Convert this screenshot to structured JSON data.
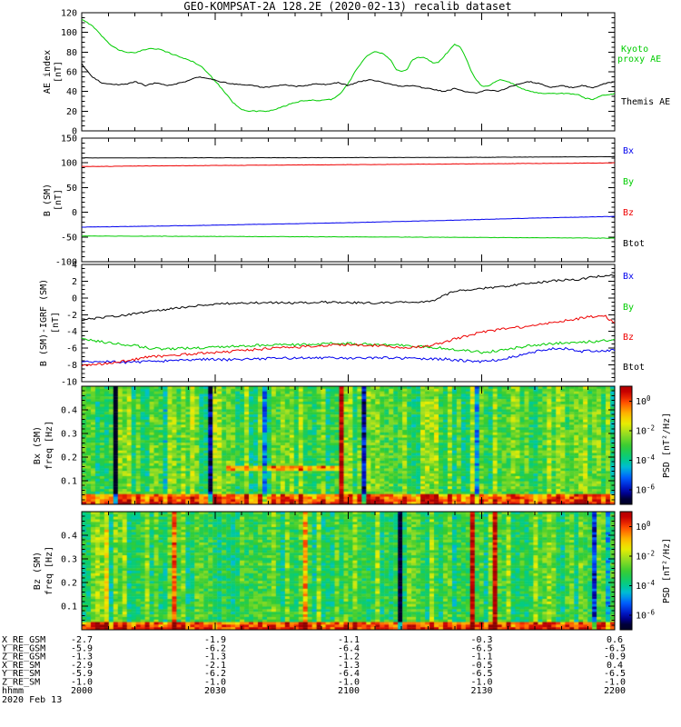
{
  "title": "GEO-KOMPSAT-2A 128.2E (2020-02-13) recalib dataset",
  "hhmm_label": "hhmm",
  "date_label": "2020 Feb 13",
  "time_ticks": [
    "2000",
    "2030",
    "2100",
    "2130",
    "2200"
  ],
  "colors": {
    "foreground": "#000000",
    "background": "#ffffff",
    "green": "#00cc00",
    "blue": "#0000ee",
    "red": "#ee0000",
    "black": "#000000"
  },
  "panel1": {
    "ylabel_line1": "AE index",
    "ylabel_line2": "[nT]",
    "yticks": [
      "120",
      "100",
      "80",
      "60",
      "40",
      "20",
      "0"
    ],
    "legend_kyoto_line1": "Kyoto",
    "legend_kyoto_line2": "proxy AE",
    "legend_kyoto_color": "#00cc00",
    "legend_themis": "Themis AE",
    "legend_themis_color": "#000000"
  },
  "panel2": {
    "ylabel_line1": "B (SM)",
    "ylabel_line2": "[nT]",
    "yticks": [
      "150",
      "100",
      "50",
      "0",
      "-50",
      "-100"
    ]
  },
  "panel3": {
    "ylabel_line1": "B (SM)-IGRF (SM)",
    "ylabel_line2": "[nT]",
    "yticks": [
      "4",
      "2",
      "0",
      "-2",
      "-4",
      "-6",
      "-8",
      "-10"
    ]
  },
  "panel4": {
    "ylabel_line1": "Bx (SM)",
    "ylabel_line2": "freq [Hz]",
    "yticks": [
      "0.4",
      "0.3",
      "0.2",
      "0.1"
    ],
    "colorbar_label": "PSD [nT²/Hz]",
    "colorbar_ticks": [
      "10^0",
      "10^-2",
      "10^-4",
      "10^-6"
    ]
  },
  "panel5": {
    "ylabel_line1": "Bz (SM)",
    "ylabel_line2": "freq [Hz]",
    "yticks": [
      "0.4",
      "0.3",
      "0.2",
      "0.1"
    ],
    "colorbar_label": "PSD [nT²/Hz]",
    "colorbar_ticks": [
      "10^0",
      "10^-2",
      "10^-4",
      "10^-6"
    ]
  },
  "b_legend": [
    {
      "label": "Bx",
      "color": "#0000ee"
    },
    {
      "label": "By",
      "color": "#00cc00"
    },
    {
      "label": "Bz",
      "color": "#ee0000"
    },
    {
      "label": "Btot",
      "color": "#000000"
    }
  ],
  "ephemeris": [
    {
      "label": "X_RE_GSM",
      "values": [
        "-2.7",
        "-1.9",
        "-1.1",
        "-0.3",
        "0.6"
      ]
    },
    {
      "label": "Y_RE_GSM",
      "values": [
        "-5.9",
        "-6.2",
        "-6.4",
        "-6.5",
        "-6.5"
      ]
    },
    {
      "label": "Z_RE_GSM",
      "values": [
        "-1.3",
        "-1.3",
        "-1.2",
        "-1.1",
        "-0.9"
      ]
    },
    {
      "label": "X_RE_SM",
      "values": [
        "-2.9",
        "-2.1",
        "-1.3",
        "-0.5",
        "0.4"
      ]
    },
    {
      "label": "Y_RE_SM",
      "values": [
        "-5.9",
        "-6.2",
        "-6.4",
        "-6.5",
        "-6.5"
      ]
    },
    {
      "label": "Z_RE_SM",
      "values": [
        "-1.0",
        "-1.0",
        "-1.0",
        "-1.0",
        "-1.0"
      ]
    }
  ],
  "chart_data": [
    {
      "type": "line",
      "title": "AE index",
      "ylabel": "AE index [nT]",
      "ylim": [
        0,
        120
      ],
      "x_axis_labels": [
        "2000",
        "2030",
        "2100",
        "2130",
        "2200"
      ],
      "series": [
        {
          "name": "Kyoto proxy AE",
          "color": "#00cc00",
          "noise": 0.5,
          "x": [
            0,
            0.02,
            0.04,
            0.055,
            0.07,
            0.085,
            0.1,
            0.115,
            0.13,
            0.145,
            0.16,
            0.175,
            0.19,
            0.21,
            0.225,
            0.24,
            0.255,
            0.27,
            0.285,
            0.3,
            0.315,
            0.33,
            0.35,
            0.365,
            0.38,
            0.395,
            0.41,
            0.43,
            0.45,
            0.47,
            0.485,
            0.5,
            0.515,
            0.53,
            0.54,
            0.55,
            0.565,
            0.58,
            0.59,
            0.6,
            0.61,
            0.62,
            0.63,
            0.645,
            0.66,
            0.67,
            0.68,
            0.69,
            0.7,
            0.71,
            0.72,
            0.73,
            0.74,
            0.75,
            0.76,
            0.77,
            0.785,
            0.8,
            0.815,
            0.83,
            0.85,
            0.87,
            0.89,
            0.91,
            0.93,
            0.945,
            0.96,
            0.975,
            0.99,
            1
          ],
          "values": [
            113,
            107,
            95,
            87,
            82,
            80,
            79,
            82,
            84,
            83,
            80,
            77,
            74,
            70,
            65,
            57,
            48,
            38,
            28,
            22,
            20,
            20,
            20,
            22,
            25,
            28,
            30,
            31,
            31,
            32,
            38,
            48,
            62,
            73,
            78,
            80,
            79,
            72,
            62,
            60,
            62,
            72,
            75,
            74,
            69,
            70,
            76,
            82,
            88,
            85,
            75,
            62,
            52,
            46,
            45,
            48,
            52,
            50,
            46,
            42,
            39,
            38,
            38,
            38,
            37,
            33,
            32,
            36,
            37,
            38
          ]
        },
        {
          "name": "Themis AE",
          "color": "#000000",
          "noise": 0.5,
          "x": [
            0,
            0.02,
            0.04,
            0.06,
            0.08,
            0.1,
            0.12,
            0.14,
            0.16,
            0.18,
            0.2,
            0.22,
            0.24,
            0.26,
            0.28,
            0.3,
            0.32,
            0.34,
            0.36,
            0.38,
            0.4,
            0.42,
            0.44,
            0.46,
            0.48,
            0.5,
            0.52,
            0.54,
            0.56,
            0.58,
            0.6,
            0.62,
            0.64,
            0.66,
            0.68,
            0.7,
            0.72,
            0.74,
            0.76,
            0.78,
            0.8,
            0.82,
            0.84,
            0.86,
            0.88,
            0.9,
            0.92,
            0.94,
            0.96,
            0.98,
            1
          ],
          "values": [
            68,
            55,
            48,
            47,
            47,
            50,
            46,
            49,
            46,
            48,
            51,
            55,
            53,
            50,
            48,
            47,
            46,
            44,
            45,
            47,
            45,
            46,
            48,
            47,
            49,
            46,
            50,
            52,
            50,
            47,
            45,
            46,
            44,
            42,
            40,
            43,
            40,
            38,
            42,
            40,
            44,
            48,
            50,
            48,
            44,
            46,
            44,
            46,
            44,
            48,
            50
          ]
        }
      ]
    },
    {
      "type": "line",
      "title": "B (SM)",
      "ylabel": "B (SM) [nT]",
      "ylim": [
        -100,
        150
      ],
      "x_axis_labels": [
        "2000",
        "2030",
        "2100",
        "2130",
        "2200"
      ],
      "series": [
        {
          "name": "Bx",
          "color": "#0000ee",
          "noise": 0.3,
          "x": [
            0,
            0.1,
            0.2,
            0.3,
            0.4,
            0.5,
            0.6,
            0.7,
            0.8,
            0.9,
            1
          ],
          "values": [
            -30,
            -28.5,
            -27,
            -25,
            -23,
            -21,
            -18.5,
            -16,
            -13,
            -10.5,
            -8.5
          ]
        },
        {
          "name": "By",
          "color": "#00cc00",
          "noise": 0.35,
          "x": [
            0,
            0.1,
            0.2,
            0.3,
            0.4,
            0.5,
            0.6,
            0.7,
            0.8,
            0.9,
            1
          ],
          "values": [
            -48,
            -48.3,
            -48.7,
            -49,
            -49.4,
            -49.8,
            -50.2,
            -50.7,
            -51.2,
            -51.8,
            -52.4
          ]
        },
        {
          "name": "Bz",
          "color": "#ee0000",
          "noise": 0.35,
          "x": [
            0,
            0.1,
            0.2,
            0.3,
            0.4,
            0.5,
            0.6,
            0.7,
            0.8,
            0.9,
            1
          ],
          "values": [
            92.5,
            93.5,
            94.3,
            95,
            95.7,
            96.3,
            97,
            97.7,
            98.4,
            99.2,
            100
          ]
        },
        {
          "name": "Btot",
          "color": "#000000",
          "noise": 0.25,
          "x": [
            0,
            0.1,
            0.2,
            0.3,
            0.4,
            0.5,
            0.6,
            0.7,
            0.8,
            0.9,
            1
          ],
          "values": [
            110,
            110,
            110.2,
            110.3,
            110.4,
            110.6,
            110.8,
            111,
            111.4,
            112,
            112.5
          ]
        }
      ]
    },
    {
      "type": "line",
      "title": "B (SM)-IGRF (SM)",
      "ylabel": "B (SM)-IGRF (SM) [nT]",
      "ylim": [
        -10,
        4
      ],
      "x_axis_labels": [
        "2000",
        "2030",
        "2100",
        "2130",
        "2200"
      ],
      "series": [
        {
          "name": "Bx",
          "color": "#0000ee",
          "noise": 0.15,
          "x": [
            0,
            0.04,
            0.08,
            0.12,
            0.16,
            0.2,
            0.24,
            0.28,
            0.32,
            0.36,
            0.4,
            0.44,
            0.48,
            0.52,
            0.56,
            0.6,
            0.64,
            0.68,
            0.72,
            0.75,
            0.78,
            0.81,
            0.84,
            0.86,
            0.88,
            0.9,
            0.92,
            0.94,
            0.96,
            0.98,
            1
          ],
          "values": [
            -7.7,
            -7.6,
            -7.7,
            -7.6,
            -7.5,
            -7.4,
            -7.3,
            -7.4,
            -7.3,
            -7.2,
            -7.2,
            -7.1,
            -7.2,
            -7.2,
            -7.1,
            -7.2,
            -7.3,
            -7.3,
            -7.5,
            -7.6,
            -7.4,
            -7.0,
            -6.6,
            -6.3,
            -6.1,
            -6.0,
            -6.2,
            -6.4,
            -6.3,
            -6.4,
            -6.2
          ]
        },
        {
          "name": "By",
          "color": "#00cc00",
          "noise": 0.15,
          "x": [
            0,
            0.03,
            0.06,
            0.1,
            0.13,
            0.16,
            0.2,
            0.24,
            0.28,
            0.32,
            0.36,
            0.4,
            0.44,
            0.48,
            0.52,
            0.56,
            0.6,
            0.64,
            0.68,
            0.72,
            0.75,
            0.78,
            0.81,
            0.84,
            0.87,
            0.9,
            0.93,
            0.96,
            1
          ],
          "values": [
            -4.8,
            -5.2,
            -5.4,
            -5.7,
            -6.0,
            -6.1,
            -6.0,
            -5.9,
            -5.8,
            -5.7,
            -5.6,
            -5.6,
            -5.5,
            -5.4,
            -5.5,
            -5.6,
            -5.7,
            -5.8,
            -6.0,
            -6.3,
            -6.5,
            -6.3,
            -6.0,
            -5.7,
            -5.5,
            -5.4,
            -5.3,
            -5.2,
            -5.0
          ]
        },
        {
          "name": "Bz",
          "color": "#ee0000",
          "noise": 0.15,
          "x": [
            0,
            0.04,
            0.08,
            0.12,
            0.16,
            0.2,
            0.24,
            0.28,
            0.32,
            0.36,
            0.4,
            0.44,
            0.48,
            0.52,
            0.56,
            0.6,
            0.64,
            0.66,
            0.68,
            0.7,
            0.73,
            0.76,
            0.79,
            0.82,
            0.85,
            0.88,
            0.91,
            0.94,
            0.96,
            0.98,
            1
          ],
          "values": [
            -8.05,
            -7.9,
            -7.55,
            -7.1,
            -6.9,
            -6.7,
            -6.55,
            -6.4,
            -6.2,
            -6.0,
            -5.9,
            -5.7,
            -5.6,
            -5.6,
            -5.7,
            -5.9,
            -5.8,
            -5.6,
            -5.3,
            -4.9,
            -4.4,
            -4.0,
            -3.7,
            -3.5,
            -3.3,
            -3.0,
            -2.7,
            -2.4,
            -2.2,
            -2.1,
            -3.0
          ]
        },
        {
          "name": "Btot",
          "color": "#000000",
          "noise": 0.12,
          "x": [
            0,
            0.03,
            0.06,
            0.1,
            0.14,
            0.18,
            0.22,
            0.26,
            0.3,
            0.35,
            0.4,
            0.45,
            0.5,
            0.55,
            0.6,
            0.63,
            0.66,
            0.68,
            0.7,
            0.73,
            0.76,
            0.79,
            0.82,
            0.85,
            0.88,
            0.91,
            0.93,
            0.95,
            0.97,
            1
          ],
          "values": [
            -2.6,
            -2.4,
            -2.2,
            -1.9,
            -1.5,
            -1.2,
            -0.9,
            -0.7,
            -0.6,
            -0.55,
            -0.6,
            -0.5,
            -0.55,
            -0.6,
            -0.5,
            -0.6,
            -0.3,
            0.3,
            0.8,
            1.0,
            1.2,
            1.3,
            1.6,
            1.8,
            2.0,
            2.2,
            2.1,
            2.4,
            2.6,
            2.7
          ]
        }
      ]
    },
    {
      "type": "heatmap",
      "title": "Bx (SM) spectrogram",
      "ylabel": "Bx (SM) freq [Hz]",
      "ylim": [
        0,
        0.5
      ],
      "x_axis_labels": [
        "2000",
        "2030",
        "2100",
        "2130",
        "2200"
      ],
      "colorbar": {
        "label": "PSD [nT²/Hz]",
        "tick_labels": [
          "10^0",
          "10^-2",
          "10^-4",
          "10^-6"
        ],
        "scale": "log rainbow",
        "decades_top_to_bottom": [
          1,
          -7
        ]
      },
      "pattern": {
        "seed": 11,
        "base_level": 0.52,
        "column_noise": 0.13,
        "cell_noise": 0.11,
        "stripe_probability": 0.07,
        "stripe_strength": 0.45,
        "low_freq_band": {
          "freq_max": 0.045,
          "boost": 0.34
        },
        "streaks": [
          {
            "freq": 0.16,
            "x0": 0.27,
            "x1": 0.48,
            "boost": 0.3
          }
        ]
      }
    },
    {
      "type": "heatmap",
      "title": "Bz (SM) spectrogram",
      "ylabel": "Bz (SM) freq [Hz]",
      "ylim": [
        0,
        0.5
      ],
      "x_axis_labels": [
        "2000",
        "2030",
        "2100",
        "2130",
        "2200"
      ],
      "colorbar": {
        "label": "PSD [nT²/Hz]",
        "tick_labels": [
          "10^0",
          "10^-2",
          "10^-4",
          "10^-6"
        ],
        "scale": "log rainbow",
        "decades_top_to_bottom": [
          1,
          -7
        ]
      },
      "pattern": {
        "seed": 29,
        "base_level": 0.5,
        "column_noise": 0.12,
        "cell_noise": 0.11,
        "stripe_probability": 0.06,
        "stripe_strength": 0.45,
        "low_freq_band": {
          "freq_max": 0.04,
          "boost": 0.38
        },
        "streaks": []
      }
    }
  ]
}
